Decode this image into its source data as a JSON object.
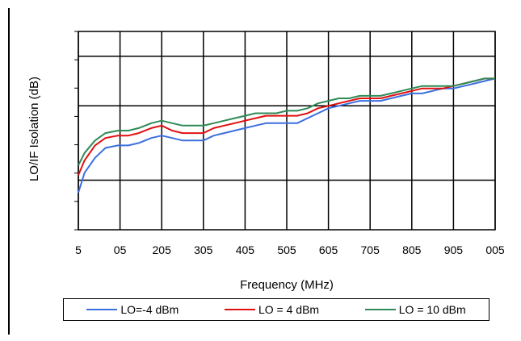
{
  "chart_data": {
    "type": "line",
    "title": "",
    "xlabel": "Frequency (MHz)",
    "ylabel": "LO/IF Isolation (dB)",
    "x_ticks": [
      "5",
      "05",
      "205",
      "305",
      "405",
      "505",
      "605",
      "705",
      "805",
      "905",
      "005"
    ],
    "y_ticks": [
      "",
      "",
      "",
      "",
      "",
      "",
      "",
      ""
    ],
    "ylim": [
      0,
      8
    ],
    "grid": true,
    "legend_position": "bottom",
    "x": [
      5,
      20,
      45,
      70,
      100,
      125,
      150,
      180,
      205,
      230,
      255,
      280,
      305,
      330,
      355,
      380,
      405,
      430,
      455,
      480,
      505,
      530,
      555,
      580,
      605,
      630,
      655,
      680,
      705,
      730,
      755,
      780,
      805,
      830,
      855,
      880,
      905,
      930,
      955,
      980,
      1005
    ],
    "series": [
      {
        "name": "LO=-4 dBm",
        "color": "#3b6fe0",
        "values": [
          1.5,
          2.3,
          2.9,
          3.3,
          3.4,
          3.4,
          3.5,
          3.7,
          3.8,
          3.7,
          3.6,
          3.6,
          3.6,
          3.8,
          3.9,
          4.0,
          4.1,
          4.2,
          4.3,
          4.3,
          4.3,
          4.3,
          4.5,
          4.7,
          4.9,
          5.0,
          5.1,
          5.2,
          5.2,
          5.2,
          5.3,
          5.4,
          5.5,
          5.5,
          5.6,
          5.7,
          5.7,
          5.8,
          5.9,
          6.0,
          6.1
        ]
      },
      {
        "name": "LO = 4 dBm",
        "color": "#e01010",
        "values": [
          2.2,
          2.8,
          3.4,
          3.7,
          3.8,
          3.8,
          3.9,
          4.1,
          4.2,
          4.0,
          3.9,
          3.9,
          3.9,
          4.1,
          4.2,
          4.3,
          4.4,
          4.5,
          4.6,
          4.6,
          4.6,
          4.6,
          4.7,
          4.9,
          5.0,
          5.1,
          5.2,
          5.3,
          5.3,
          5.3,
          5.4,
          5.5,
          5.6,
          5.7,
          5.7,
          5.7,
          5.8,
          5.9,
          6.0,
          6.1,
          6.1
        ]
      },
      {
        "name": "LO = 10 dBm",
        "color": "#2e8b57",
        "values": [
          2.6,
          3.1,
          3.6,
          3.9,
          4.0,
          4.0,
          4.1,
          4.3,
          4.4,
          4.3,
          4.2,
          4.2,
          4.2,
          4.3,
          4.4,
          4.5,
          4.6,
          4.7,
          4.7,
          4.7,
          4.8,
          4.8,
          4.9,
          5.1,
          5.2,
          5.3,
          5.3,
          5.4,
          5.4,
          5.4,
          5.5,
          5.6,
          5.7,
          5.8,
          5.8,
          5.8,
          5.8,
          5.9,
          6.0,
          6.1,
          6.1
        ]
      }
    ]
  }
}
